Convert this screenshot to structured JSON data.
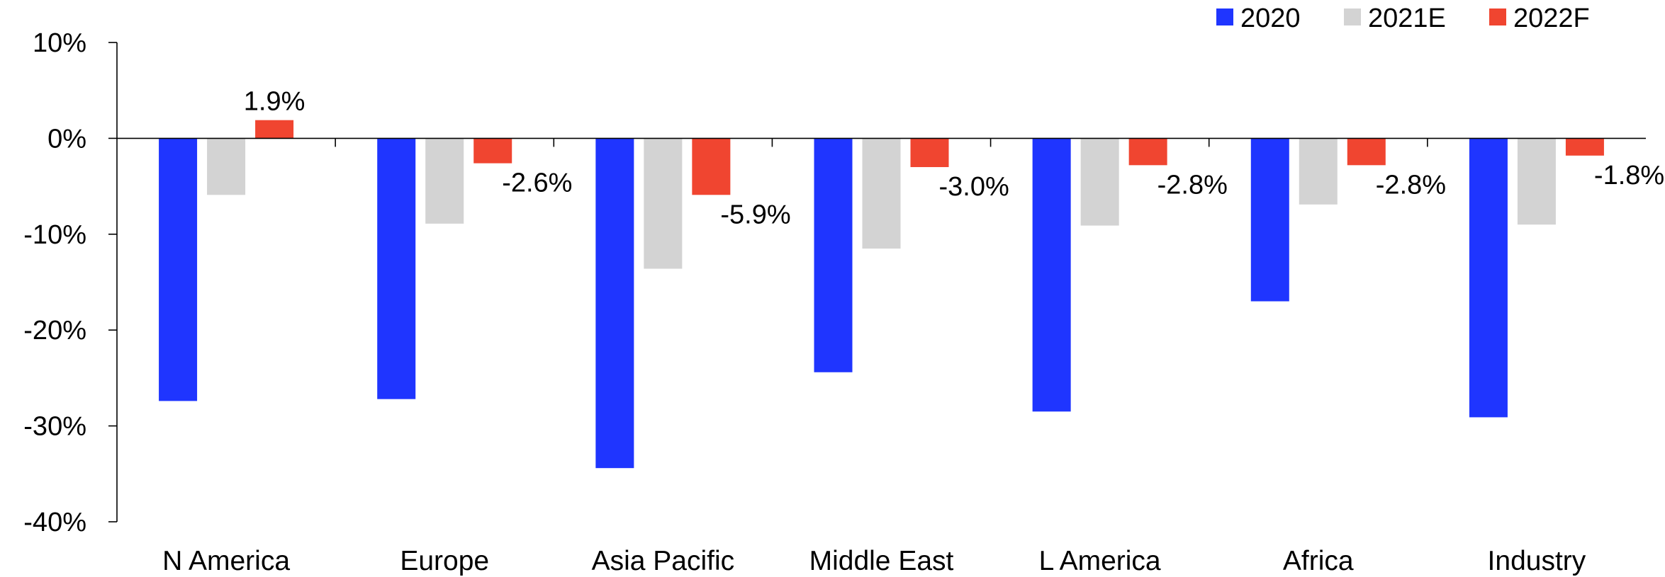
{
  "chart_data": {
    "type": "bar",
    "title": "",
    "xlabel": "",
    "ylabel": "",
    "ylim": [
      -40,
      10
    ],
    "yticks": [
      10,
      0,
      -10,
      -20,
      -30,
      -40
    ],
    "ytick_labels": [
      "10%",
      "0%",
      "-10%",
      "-20%",
      "-30%",
      "-40%"
    ],
    "categories": [
      "N America",
      "Europe",
      "Asia Pacific",
      "Middle East",
      "L America",
      "Africa",
      "Industry"
    ],
    "series": [
      {
        "name": "2020",
        "color": "#1f35ff",
        "values": [
          -27.4,
          -27.2,
          -34.4,
          -24.4,
          -28.5,
          -17.0,
          -29.1
        ]
      },
      {
        "name": "2021E",
        "color": "#d3d3d3",
        "values": [
          -5.9,
          -8.9,
          -13.6,
          -11.5,
          -9.1,
          -6.9,
          -9.0
        ]
      },
      {
        "name": "2022F",
        "color": "#f04530",
        "values": [
          1.9,
          -2.6,
          -5.9,
          -3.0,
          -2.8,
          -2.8,
          -1.8
        ],
        "labels": [
          "1.9%",
          "-2.6%",
          "-5.9%",
          "-3.0%",
          "-2.8%",
          "-2.8%",
          "-1.8%"
        ]
      }
    ],
    "grid": false,
    "legend_position": "top-right"
  }
}
